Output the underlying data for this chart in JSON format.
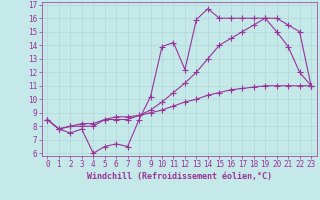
{
  "xlabel": "Windchill (Refroidissement éolien,°C)",
  "bg_color": "#c5e8e8",
  "line_color": "#993399",
  "grid_color": "#b0d8d8",
  "xlim": [
    -0.5,
    23.5
  ],
  "ylim": [
    5.8,
    17.2
  ],
  "xticks": [
    0,
    1,
    2,
    3,
    4,
    5,
    6,
    7,
    8,
    9,
    10,
    11,
    12,
    13,
    14,
    15,
    16,
    17,
    18,
    19,
    20,
    21,
    22,
    23
  ],
  "yticks": [
    6,
    7,
    8,
    9,
    10,
    11,
    12,
    13,
    14,
    15,
    16,
    17
  ],
  "line1_x": [
    0,
    1,
    2,
    3,
    4,
    5,
    6,
    7,
    8,
    9,
    10,
    11,
    12,
    13,
    14,
    15,
    16,
    17,
    18,
    19,
    20,
    21,
    22,
    23
  ],
  "line1_y": [
    8.5,
    7.8,
    7.5,
    7.8,
    6.0,
    6.5,
    6.7,
    6.5,
    8.5,
    10.2,
    13.9,
    14.2,
    12.2,
    15.9,
    16.7,
    16.0,
    16.0,
    16.0,
    16.0,
    16.0,
    15.0,
    13.9,
    12.0,
    11.0
  ],
  "line2_x": [
    0,
    1,
    2,
    3,
    4,
    5,
    6,
    7,
    8,
    9,
    10,
    11,
    12,
    13,
    14,
    15,
    16,
    17,
    18,
    19,
    20,
    21,
    22,
    23
  ],
  "line2_y": [
    8.5,
    7.8,
    8.0,
    8.0,
    8.0,
    8.5,
    8.5,
    8.5,
    8.8,
    9.2,
    9.8,
    10.5,
    11.2,
    12.0,
    13.0,
    14.0,
    14.5,
    15.0,
    15.5,
    16.0,
    16.0,
    15.5,
    15.0,
    11.0
  ],
  "line3_x": [
    0,
    1,
    2,
    3,
    4,
    5,
    6,
    7,
    8,
    9,
    10,
    11,
    12,
    13,
    14,
    15,
    16,
    17,
    18,
    19,
    20,
    21,
    22,
    23
  ],
  "line3_y": [
    8.5,
    7.8,
    8.0,
    8.2,
    8.2,
    8.5,
    8.7,
    8.7,
    8.8,
    9.0,
    9.2,
    9.5,
    9.8,
    10.0,
    10.3,
    10.5,
    10.7,
    10.8,
    10.9,
    11.0,
    11.0,
    11.0,
    11.0,
    11.0
  ],
  "marker": "+",
  "markersize": 4,
  "linewidth": 0.8,
  "fontsize_label": 6,
  "fontsize_tick": 5.5
}
